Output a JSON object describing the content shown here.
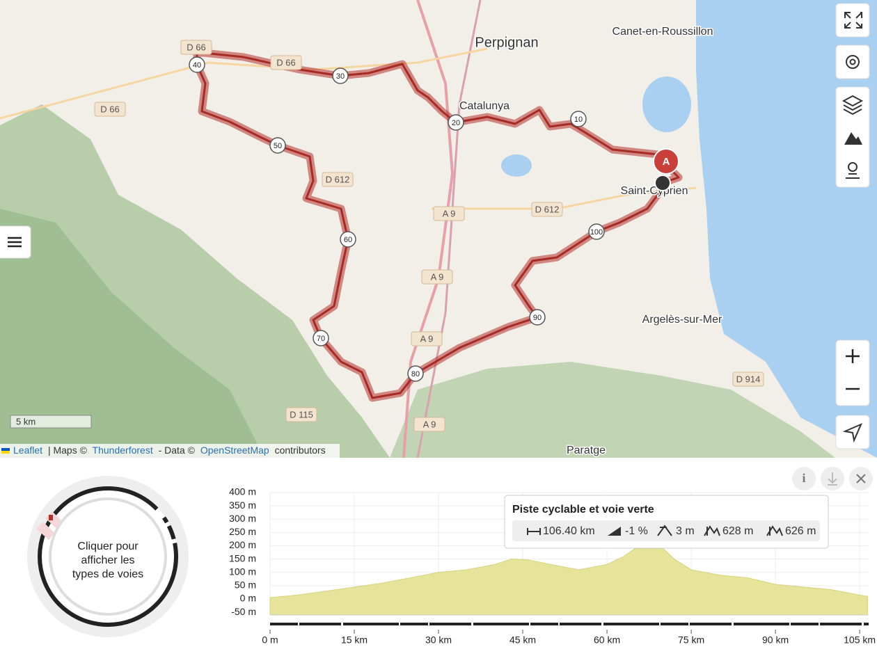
{
  "map": {
    "places": [
      "Perpignan",
      "Canet-en-Roussillon",
      "Catalunya",
      "Saint-Cyprien",
      "Argelès-sur-Mer",
      "Paratge"
    ],
    "roads": [
      "D 66",
      "D 66",
      "D 66",
      "D 612",
      "D 612",
      "A 9",
      "A 9",
      "A 9",
      "A 9",
      "D 115",
      "D 914"
    ],
    "km_markers": [
      "10",
      "20",
      "30",
      "40",
      "50",
      "60",
      "70",
      "80",
      "90",
      "100"
    ],
    "start_marker": "A",
    "scale": "5 km",
    "attribution": {
      "leaflet": "Leaflet",
      "maps": "| Maps ©",
      "thunderforest": "Thunderforest",
      "data": "- Data ©",
      "osm": "OpenStreetMap",
      "contributors": "contributors"
    }
  },
  "surface_donut": {
    "label": "Cliquer pour afficher les types de voies"
  },
  "tooltip": {
    "title": "Piste cyclable et voie verte",
    "distance": "106.40 km",
    "slope": "-1 %",
    "min_elevation": "3 m",
    "ascent": "628 m",
    "descent": "626 m"
  },
  "elevation_chart": {
    "type": "area",
    "x": [
      0,
      5,
      10,
      15,
      20,
      25,
      30,
      35,
      40,
      43,
      46,
      50,
      55,
      60,
      63,
      65,
      70,
      72,
      75,
      80,
      85,
      90,
      95,
      100,
      105,
      106.4
    ],
    "values": [
      5,
      15,
      30,
      45,
      60,
      80,
      100,
      110,
      130,
      150,
      147,
      130,
      110,
      130,
      160,
      190,
      190,
      150,
      110,
      90,
      80,
      55,
      45,
      35,
      15,
      10
    ],
    "color": "#e6e39b",
    "xlim": [
      0,
      106.6
    ],
    "ylim": [
      -60,
      400
    ],
    "xticks": [
      {
        "value": 0,
        "label": "0 m"
      },
      {
        "value": 15,
        "label": "15 km"
      },
      {
        "value": 30,
        "label": "30 km"
      },
      {
        "value": 45,
        "label": "45 km"
      },
      {
        "value": 60,
        "label": "60 km"
      },
      {
        "value": 75,
        "label": "75 km"
      },
      {
        "value": 90,
        "label": "90 km"
      },
      {
        "value": 105,
        "label": "105 km"
      }
    ],
    "yticks": [
      {
        "value": 400,
        "label": "400 m"
      },
      {
        "value": 350,
        "label": "350 m"
      },
      {
        "value": 300,
        "label": "300 m"
      },
      {
        "value": 250,
        "label": "250 m"
      },
      {
        "value": 200,
        "label": "200 m"
      },
      {
        "value": 150,
        "label": "150 m"
      },
      {
        "value": 100,
        "label": "100 m"
      },
      {
        "value": 50,
        "label": "50 m"
      },
      {
        "value": 0,
        "label": "0 m"
      },
      {
        "value": -50,
        "label": "-50 m"
      }
    ],
    "grid": true
  }
}
